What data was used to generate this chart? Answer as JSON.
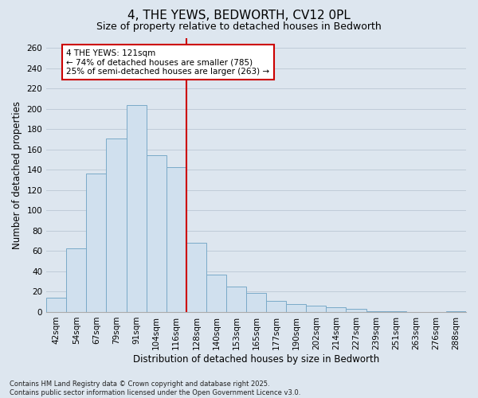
{
  "title1": "4, THE YEWS, BEDWORTH, CV12 0PL",
  "title2": "Size of property relative to detached houses in Bedworth",
  "xlabel": "Distribution of detached houses by size in Bedworth",
  "ylabel": "Number of detached properties",
  "categories": [
    "42sqm",
    "54sqm",
    "67sqm",
    "79sqm",
    "91sqm",
    "104sqm",
    "116sqm",
    "128sqm",
    "140sqm",
    "153sqm",
    "165sqm",
    "177sqm",
    "190sqm",
    "202sqm",
    "214sqm",
    "227sqm",
    "239sqm",
    "251sqm",
    "263sqm",
    "276sqm",
    "288sqm"
  ],
  "values": [
    14,
    63,
    136,
    171,
    204,
    154,
    143,
    68,
    37,
    25,
    19,
    11,
    8,
    6,
    5,
    3,
    1,
    1,
    0,
    0,
    1
  ],
  "bar_color": "#d0e0ee",
  "bar_edge_color": "#7aaac8",
  "vline_color": "#cc0000",
  "annotation_text": "4 THE YEWS: 121sqm\n← 74% of detached houses are smaller (785)\n25% of semi-detached houses are larger (263) →",
  "annotation_box_facecolor": "#ffffff",
  "annotation_box_edgecolor": "#cc0000",
  "ylim": [
    0,
    270
  ],
  "yticks": [
    0,
    20,
    40,
    60,
    80,
    100,
    120,
    140,
    160,
    180,
    200,
    220,
    240,
    260
  ],
  "grid_color": "#c0ccd8",
  "background_color": "#dde6ef",
  "footer": "Contains HM Land Registry data © Crown copyright and database right 2025.\nContains public sector information licensed under the Open Government Licence v3.0.",
  "title_fontsize": 11,
  "subtitle_fontsize": 9,
  "axis_label_fontsize": 8.5,
  "tick_fontsize": 7.5,
  "annotation_fontsize": 7.5,
  "footer_fontsize": 6
}
